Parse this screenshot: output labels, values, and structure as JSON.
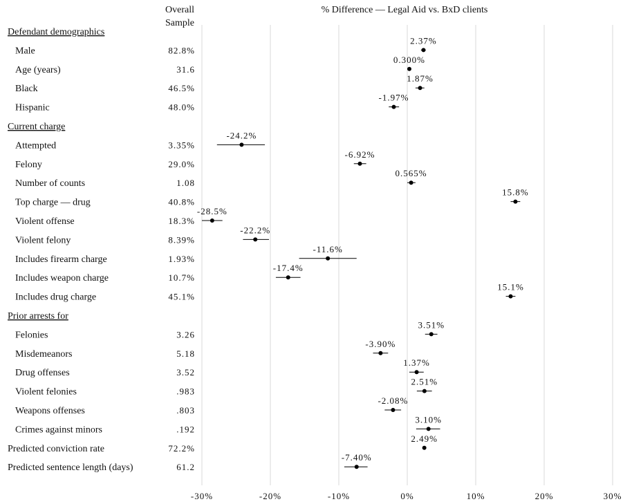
{
  "chart_data": {
    "type": "scatter",
    "title": "% Difference — Legal Aid vs. BxD clients",
    "column_header": [
      "Overall",
      "Sample"
    ],
    "xlim": [
      -30,
      30
    ],
    "x_ticks": [
      "-30%",
      "-20%",
      "-10%",
      "0%",
      "10%",
      "20%",
      "30%"
    ],
    "x_tick_values": [
      -30,
      -20,
      -10,
      0,
      10,
      20,
      30
    ],
    "grid": "vertical",
    "rows": [
      {
        "kind": "section",
        "label": "Defendant demographics"
      },
      {
        "kind": "item",
        "label": "Male",
        "sample": "82.8%",
        "value": 2.37,
        "ci_low": 2.0,
        "ci_high": 2.7,
        "value_label": "2.37%"
      },
      {
        "kind": "item",
        "label": "Age (years)",
        "sample": "31.6",
        "value": 0.3,
        "ci_low": 0.1,
        "ci_high": 0.5,
        "value_label": "0.300%"
      },
      {
        "kind": "item",
        "label": "Black",
        "sample": "46.5%",
        "value": 1.87,
        "ci_low": 1.2,
        "ci_high": 2.5,
        "value_label": "1.87%"
      },
      {
        "kind": "item",
        "label": "Hispanic",
        "sample": "48.0%",
        "value": -1.97,
        "ci_low": -2.7,
        "ci_high": -1.2,
        "value_label": "-1.97%"
      },
      {
        "kind": "section",
        "label": "Current charge"
      },
      {
        "kind": "item",
        "label": "Attempted",
        "sample": "3.35%",
        "value": -24.2,
        "ci_low": -27.8,
        "ci_high": -20.8,
        "value_label": "-24.2%"
      },
      {
        "kind": "item",
        "label": "Felony",
        "sample": "29.0%",
        "value": -6.92,
        "ci_low": -7.8,
        "ci_high": -6.0,
        "value_label": "-6.92%"
      },
      {
        "kind": "item",
        "label": "Number of counts",
        "sample": "1.08",
        "value": 0.565,
        "ci_low": 0.0,
        "ci_high": 1.2,
        "value_label": "0.565%"
      },
      {
        "kind": "item",
        "label": "Top charge — drug",
        "sample": "40.8%",
        "value": 15.8,
        "ci_low": 15.1,
        "ci_high": 16.5,
        "value_label": "15.8%"
      },
      {
        "kind": "item",
        "label": "Violent offense",
        "sample": "18.3%",
        "value": -28.5,
        "ci_low": -30.0,
        "ci_high": -27.0,
        "value_label": "-28.5%"
      },
      {
        "kind": "item",
        "label": "Violent felony",
        "sample": "8.39%",
        "value": -22.2,
        "ci_low": -24.0,
        "ci_high": -20.2,
        "value_label": "-22.2%"
      },
      {
        "kind": "item",
        "label": "Includes firearm charge",
        "sample": "1.93%",
        "value": -11.6,
        "ci_low": -15.8,
        "ci_high": -7.4,
        "value_label": "-11.6%"
      },
      {
        "kind": "item",
        "label": "Includes weapon charge",
        "sample": "10.7%",
        "value": -17.4,
        "ci_low": -19.2,
        "ci_high": -15.6,
        "value_label": "-17.4%"
      },
      {
        "kind": "item",
        "label": "Includes drug charge",
        "sample": "45.1%",
        "value": 15.1,
        "ci_low": 14.4,
        "ci_high": 15.8,
        "value_label": "15.1%"
      },
      {
        "kind": "section",
        "label": "Prior arrests for"
      },
      {
        "kind": "item",
        "label": "Felonies",
        "sample": "3.26",
        "value": 3.51,
        "ci_low": 2.6,
        "ci_high": 4.4,
        "value_label": "3.51%"
      },
      {
        "kind": "item",
        "label": "Misdemeanors",
        "sample": "5.18",
        "value": -3.9,
        "ci_low": -5.0,
        "ci_high": -2.8,
        "value_label": "-3.90%"
      },
      {
        "kind": "item",
        "label": "Drug offenses",
        "sample": "3.52",
        "value": 1.37,
        "ci_low": 0.3,
        "ci_high": 2.4,
        "value_label": "1.37%"
      },
      {
        "kind": "item",
        "label": "Violent felonies",
        "sample": ".983",
        "value": 2.51,
        "ci_low": 1.4,
        "ci_high": 3.6,
        "value_label": "2.51%"
      },
      {
        "kind": "item",
        "label": "Weapons offenses",
        "sample": ".803",
        "value": -2.08,
        "ci_low": -3.3,
        "ci_high": -0.9,
        "value_label": "-2.08%"
      },
      {
        "kind": "item",
        "label": "Crimes against minors",
        "sample": ".192",
        "value": 3.1,
        "ci_low": 1.3,
        "ci_high": 4.8,
        "value_label": "3.10%"
      },
      {
        "kind": "item",
        "label": "Predicted conviction rate",
        "sample": "72.2%",
        "value": 2.49,
        "ci_low": 2.3,
        "ci_high": 2.7,
        "value_label": "2.49%",
        "flush": true
      },
      {
        "kind": "item",
        "label": "Predicted sentence length (days)",
        "sample": "61.2",
        "value": -7.4,
        "ci_low": -9.2,
        "ci_high": -5.8,
        "value_label": "-7.40%",
        "flush": true
      }
    ]
  }
}
